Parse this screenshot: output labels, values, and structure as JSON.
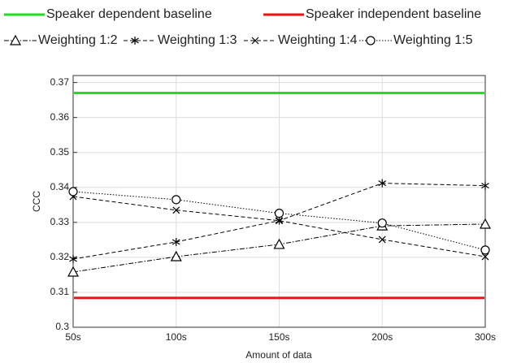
{
  "chart_data": {
    "type": "line",
    "x_label": "Amount of data",
    "y_label": "CCC",
    "categories": [
      "50s",
      "100s",
      "150s",
      "200s",
      "300s"
    ],
    "baselines": [
      {
        "name": "Speaker dependent baseline",
        "color": "#22dd22",
        "value": 0.367
      },
      {
        "name": "Speaker independent baseline",
        "color": "#ee1111",
        "value": 0.3084
      }
    ],
    "series": [
      {
        "name": "Weighting 1:2",
        "color": "#000000",
        "marker": "triangle",
        "line_style": "dashdot",
        "values": [
          0.3158,
          0.3202,
          0.3237,
          0.329,
          0.3295
        ]
      },
      {
        "name": "Weighting 1:3",
        "color": "#000000",
        "marker": "asterisk",
        "line_style": "dashed",
        "values": [
          0.3195,
          0.3244,
          0.3305,
          0.3412,
          0.3405
        ]
      },
      {
        "name": "Weighting 1:4",
        "color": "#000000",
        "marker": "x",
        "line_style": "dashed",
        "values": [
          0.3374,
          0.3335,
          0.3305,
          0.3251,
          0.3202
        ]
      },
      {
        "name": "Weighting 1:5",
        "color": "#000000",
        "marker": "circle",
        "line_style": "dotted",
        "values": [
          0.3388,
          0.3365,
          0.3326,
          0.3298,
          0.3221
        ]
      }
    ],
    "ylim": [
      0.3,
      0.372
    ],
    "yticks": [
      {
        "value": 0.3,
        "label": "0.3"
      },
      0.31,
      0.32,
      0.33,
      0.34,
      0.35,
      0.36,
      0.37
    ],
    "grid": true
  }
}
